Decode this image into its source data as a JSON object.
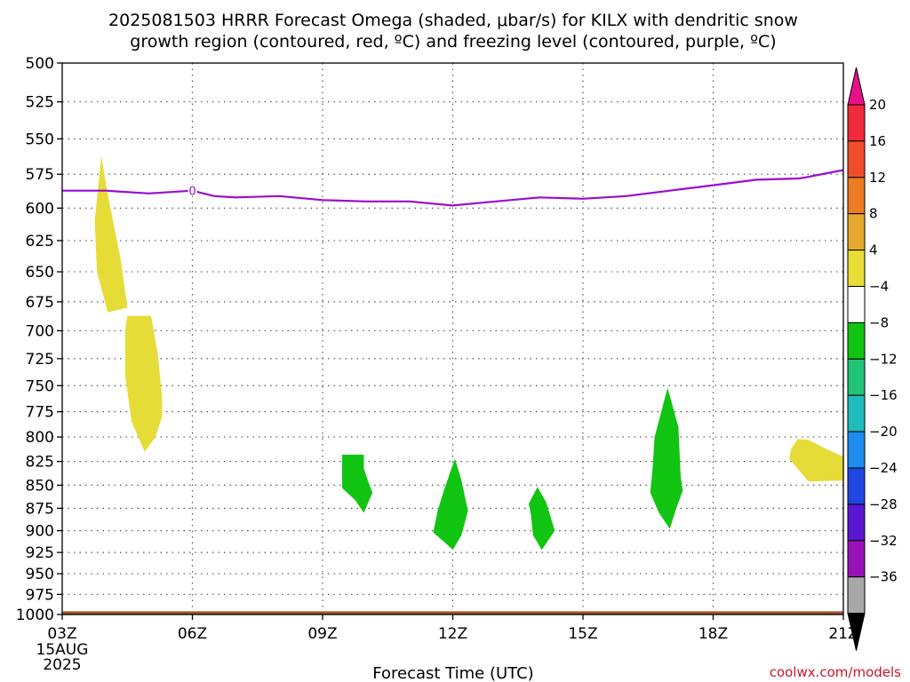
{
  "title_line1": "2025081503 HRRR Forecast Omega (shaded, μbar/s) for KILX with dendritic snow",
  "title_line2": "growth region (contoured, red, ºC) and freezing level (contoured, purple, ºC)",
  "credit": "coolwx.com/models",
  "chart_data": {
    "type": "area",
    "title": "2025081503 HRRR Forecast Omega (shaded, μbar/s) for KILX with dendritic snow growth region (contoured, red, ºC) and freezing level (contoured, purple, ºC)",
    "xlabel": "Forecast Time (UTC)",
    "ylabel": "",
    "x_axis": {
      "unit": "hour_utc",
      "range": [
        3,
        21
      ],
      "ticks": [
        {
          "value": 3,
          "label": "03Z",
          "sub": [
            "15AUG",
            "2025"
          ]
        },
        {
          "value": 6,
          "label": "06Z"
        },
        {
          "value": 9,
          "label": "09Z"
        },
        {
          "value": 12,
          "label": "12Z"
        },
        {
          "value": 15,
          "label": "15Z"
        },
        {
          "value": 18,
          "label": "18Z"
        },
        {
          "value": 21,
          "label": "21Z"
        }
      ]
    },
    "y_axis": {
      "unit": "hPa",
      "scale": "log",
      "inverted": true,
      "range": [
        500,
        1000
      ],
      "ticks": [
        500,
        525,
        550,
        575,
        600,
        625,
        650,
        675,
        700,
        725,
        750,
        775,
        800,
        825,
        850,
        875,
        900,
        925,
        950,
        975,
        1000
      ]
    },
    "grid": true,
    "colorbar": {
      "levels": [
        20,
        16,
        12,
        8,
        4,
        -4,
        -8,
        -12,
        -16,
        -20,
        -24,
        -28,
        -32,
        -36
      ],
      "colors": [
        "#ef2a3a",
        "#f04e2a",
        "#ee7a22",
        "#e7a92e",
        "#e8dc36",
        "#ffffff",
        "#12c412",
        "#22c477",
        "#1ebcbc",
        "#1e8df0",
        "#2047e2",
        "#5a16d0",
        "#9912b8",
        "#a8a8a8"
      ],
      "top_cap_color": "#e8108a",
      "bottom_cap_color": "#000000"
    },
    "freezing_level": {
      "color": "#9b0bd0",
      "label": "0",
      "label_at": 6,
      "points": [
        [
          3,
          587
        ],
        [
          4,
          587
        ],
        [
          5,
          589
        ],
        [
          6,
          587
        ],
        [
          6.5,
          591
        ],
        [
          7,
          592
        ],
        [
          8,
          591
        ],
        [
          9,
          594
        ],
        [
          10,
          595
        ],
        [
          11,
          595
        ],
        [
          12,
          598
        ],
        [
          13,
          595
        ],
        [
          14,
          592
        ],
        [
          15,
          593
        ],
        [
          16,
          591
        ],
        [
          17,
          587
        ],
        [
          18,
          583
        ],
        [
          19,
          579
        ],
        [
          20,
          578
        ],
        [
          21,
          572
        ]
      ]
    },
    "omega_regions": [
      {
        "name": "omega 4 to 8",
        "color": "#e6dc38",
        "points": [
          [
            3.9,
            562
          ],
          [
            4.05,
            590
          ],
          [
            4.35,
            640
          ],
          [
            4.5,
            680
          ],
          [
            4.05,
            684
          ],
          [
            3.8,
            650
          ],
          [
            3.75,
            610
          ]
        ]
      },
      {
        "name": "omega 4 to 8",
        "color": "#e6dc38",
        "points": [
          [
            4.5,
            687
          ],
          [
            5.05,
            687
          ],
          [
            5.2,
            720
          ],
          [
            5.3,
            760
          ],
          [
            5.3,
            780
          ],
          [
            5.15,
            800
          ],
          [
            4.9,
            815
          ],
          [
            4.6,
            785
          ],
          [
            4.45,
            740
          ],
          [
            4.45,
            700
          ]
        ]
      },
      {
        "name": "omega -4 to -8",
        "color": "#12c412",
        "points": [
          [
            9.45,
            818
          ],
          [
            9.95,
            818
          ],
          [
            9.95,
            832
          ],
          [
            10.05,
            846
          ],
          [
            10.15,
            858
          ],
          [
            9.95,
            880
          ],
          [
            9.75,
            866
          ],
          [
            9.45,
            853
          ]
        ]
      },
      {
        "name": "omega -4 to -8",
        "color": "#12c412",
        "points": [
          [
            12.05,
            822
          ],
          [
            12.2,
            845
          ],
          [
            12.35,
            878
          ],
          [
            12.2,
            905
          ],
          [
            12.0,
            922
          ],
          [
            11.85,
            915
          ],
          [
            11.55,
            902
          ],
          [
            11.65,
            878
          ],
          [
            11.8,
            855
          ]
        ]
      },
      {
        "name": "omega -4 to -8",
        "color": "#12c412",
        "points": [
          [
            13.95,
            852
          ],
          [
            14.15,
            868
          ],
          [
            14.35,
            900
          ],
          [
            14.05,
            922
          ],
          [
            13.85,
            905
          ],
          [
            13.8,
            882
          ],
          [
            13.75,
            870
          ]
        ]
      },
      {
        "name": "omega -4 to -8",
        "color": "#12c412",
        "points": [
          [
            16.95,
            752
          ],
          [
            17.2,
            790
          ],
          [
            17.25,
            840
          ],
          [
            17.3,
            856
          ],
          [
            17.15,
            875
          ],
          [
            17.0,
            898
          ],
          [
            16.75,
            880
          ],
          [
            16.55,
            858
          ],
          [
            16.6,
            835
          ],
          [
            16.65,
            800
          ]
        ]
      },
      {
        "name": "omega 4 to 8",
        "color": "#e6dc38",
        "points": [
          [
            19.95,
            802
          ],
          [
            20.2,
            803
          ],
          [
            20.6,
            812
          ],
          [
            21,
            820
          ],
          [
            21,
            845
          ],
          [
            20.2,
            846
          ],
          [
            20.05,
            838
          ],
          [
            19.75,
            822
          ],
          [
            19.8,
            812
          ]
        ]
      }
    ],
    "ground_strip": {
      "color": "#a0522d",
      "pressure_top": 996,
      "pressure_bottom": 1000
    }
  }
}
